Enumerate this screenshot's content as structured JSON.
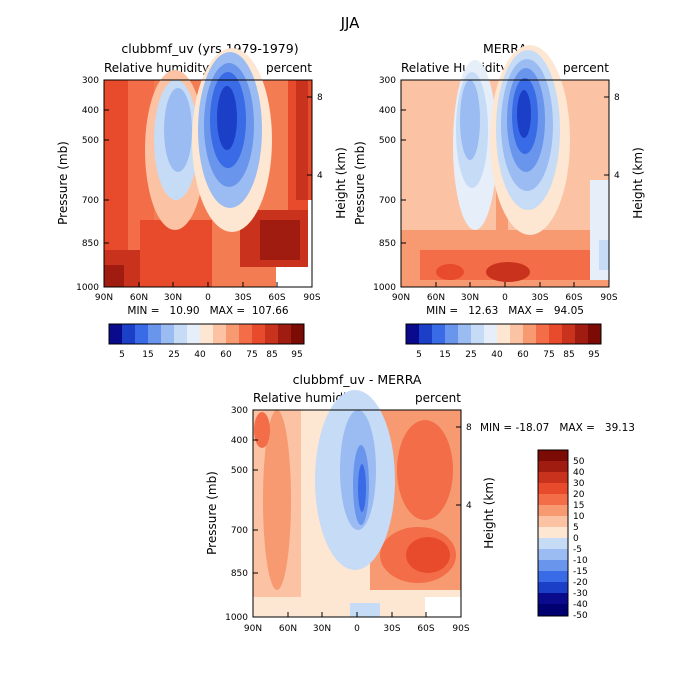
{
  "figure": {
    "title": "JJA"
  },
  "chart_data": [
    {
      "type": "heatmap",
      "title": "clubbmf_uv (yrs 1979-1979)",
      "left_subtitle": "Relative humidity",
      "right_subtitle": "percent",
      "xlabel": "",
      "ylabel": "Pressure (mb)",
      "y2label": "Height (km)",
      "x_ticks": [
        "90N",
        "60N",
        "30N",
        "0",
        "30S",
        "60S",
        "90S"
      ],
      "y_ticks": [
        "300",
        "400",
        "500",
        "700",
        "850",
        "1000"
      ],
      "y2_ticks": [
        "8",
        "4"
      ],
      "stats": "MIN =   10.90   MAX =  107.66",
      "colorbar_labels": [
        "5",
        "15",
        "25",
        "40",
        "60",
        "75",
        "85",
        "95"
      ],
      "ylim": [
        1000,
        300
      ],
      "xlim": [
        90,
        -90
      ]
    },
    {
      "type": "heatmap",
      "title": "MERRA",
      "left_subtitle": "Relative Humidity",
      "right_subtitle": "percent",
      "xlabel": "",
      "ylabel": "Pressure (mb)",
      "y2label": "Height (km)",
      "x_ticks": [
        "90N",
        "60N",
        "30N",
        "0",
        "30S",
        "60S",
        "90S"
      ],
      "y_ticks": [
        "300",
        "400",
        "500",
        "700",
        "850",
        "1000"
      ],
      "y2_ticks": [
        "8",
        "4"
      ],
      "stats": "MIN =   12.63   MAX =   94.05",
      "colorbar_labels": [
        "5",
        "15",
        "25",
        "40",
        "60",
        "75",
        "85",
        "95"
      ],
      "ylim": [
        1000,
        300
      ],
      "xlim": [
        90,
        -90
      ]
    },
    {
      "type": "heatmap",
      "title": "clubbmf_uv - MERRA",
      "left_subtitle": "Relative humidity",
      "right_subtitle": "percent",
      "xlabel": "",
      "ylabel": "Pressure (mb)",
      "y2label": "Height (km)",
      "x_ticks": [
        "90N",
        "60N",
        "30N",
        "0",
        "30S",
        "60S",
        "90S"
      ],
      "y_ticks": [
        "300",
        "400",
        "500",
        "700",
        "850",
        "1000"
      ],
      "y2_ticks": [
        "8",
        "4"
      ],
      "stats": "MIN = -18.07   MAX =   39.13",
      "colorbar_labels": [
        "50",
        "40",
        "30",
        "20",
        "15",
        "10",
        "5",
        "0",
        "-5",
        "-10",
        "-15",
        "-20",
        "-30",
        "-40",
        "-50"
      ],
      "ylim": [
        1000,
        300
      ],
      "xlim": [
        90,
        -90
      ]
    }
  ],
  "palettes": {
    "abs": [
      "#0a0a8c",
      "#1c3fc8",
      "#3a6be6",
      "#6a95ec",
      "#9bbcf2",
      "#c6dbf6",
      "#e6eefa",
      "#fde6d2",
      "#fbc3a4",
      "#f79a72",
      "#f26d48",
      "#e84a2c",
      "#c9321d",
      "#a11c10",
      "#7c0b05"
    ],
    "diff": [
      "#7c0b05",
      "#a11c10",
      "#c9321d",
      "#e84a2c",
      "#f26d48",
      "#f79a72",
      "#fbc3a4",
      "#fde6d2",
      "#c6dbf6",
      "#9bbcf2",
      "#6a95ec",
      "#3a6be6",
      "#1c3fc8",
      "#0a0a8c",
      "#000070"
    ]
  }
}
